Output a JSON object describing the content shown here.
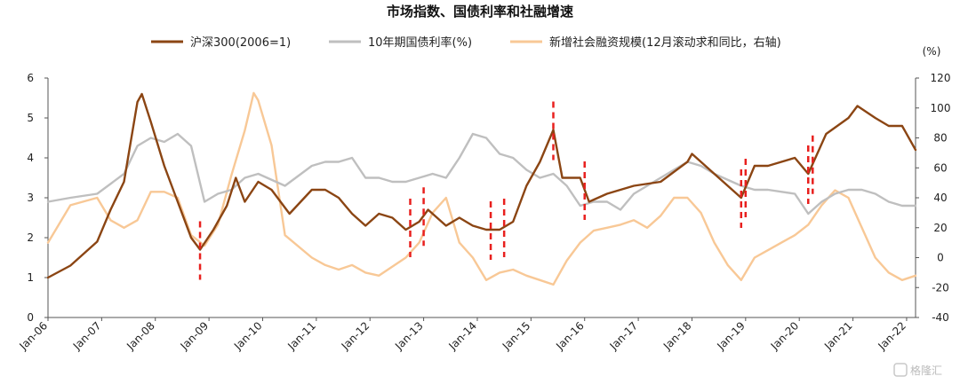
{
  "chart_data": {
    "type": "line",
    "title": "市场指数、国债利率和社融增速",
    "right_unit": "(%)",
    "left_axis": {
      "min": 0,
      "max": 6,
      "ticks": [
        "0",
        "1",
        "2",
        "3",
        "4",
        "5",
        "6"
      ]
    },
    "right_axis": {
      "min": -40,
      "max": 120,
      "ticks": [
        "-40",
        "-20",
        "0",
        "20",
        "40",
        "60",
        "80",
        "100",
        "120"
      ]
    },
    "x_axis": {
      "min": "2006-01",
      "max": "2022-03",
      "ticks": [
        "Jan-06",
        "Jan-07",
        "Jan-08",
        "Jan-09",
        "Jan-10",
        "Jan-11",
        "Jan-12",
        "Jan-13",
        "Jan-14",
        "Jan-15",
        "Jan-16",
        "Jan-17",
        "Jan-18",
        "Jan-19",
        "Jan-20",
        "Jan-21",
        "Jan-22"
      ]
    },
    "grid": false,
    "legend_position": "top",
    "series": [
      {
        "name": "沪深300(2006=1)",
        "axis": "left",
        "color": "#8B4513",
        "x": [
          "2006-01",
          "2006-06",
          "2006-12",
          "2007-03",
          "2007-06",
          "2007-09",
          "2007-10",
          "2007-12",
          "2008-03",
          "2008-06",
          "2008-09",
          "2008-11",
          "2009-02",
          "2009-05",
          "2009-07",
          "2009-09",
          "2009-12",
          "2010-03",
          "2010-07",
          "2010-12",
          "2011-03",
          "2011-06",
          "2011-09",
          "2011-12",
          "2012-03",
          "2012-06",
          "2012-09",
          "2012-12",
          "2013-02",
          "2013-06",
          "2013-09",
          "2013-12",
          "2014-03",
          "2014-06",
          "2014-09",
          "2014-12",
          "2015-03",
          "2015-06",
          "2015-08",
          "2015-12",
          "2016-02",
          "2016-06",
          "2016-12",
          "2017-06",
          "2017-12",
          "2018-01",
          "2018-06",
          "2018-12",
          "2019-03",
          "2019-06",
          "2019-12",
          "2020-03",
          "2020-07",
          "2020-12",
          "2021-02",
          "2021-06",
          "2021-09",
          "2021-12",
          "2022-03"
        ],
        "y": [
          1.0,
          1.3,
          1.9,
          2.7,
          3.4,
          5.4,
          5.6,
          4.9,
          3.8,
          2.9,
          2.0,
          1.7,
          2.2,
          2.8,
          3.5,
          2.9,
          3.4,
          3.2,
          2.6,
          3.2,
          3.2,
          3.0,
          2.6,
          2.3,
          2.6,
          2.5,
          2.2,
          2.4,
          2.7,
          2.3,
          2.5,
          2.3,
          2.2,
          2.2,
          2.4,
          3.3,
          3.9,
          4.7,
          3.5,
          3.5,
          2.9,
          3.1,
          3.3,
          3.4,
          3.9,
          4.1,
          3.6,
          3.0,
          3.8,
          3.8,
          4.0,
          3.6,
          4.6,
          5.0,
          5.3,
          5.0,
          4.8,
          4.8,
          4.2
        ]
      },
      {
        "name": "10年期国债利率(%)",
        "axis": "left",
        "color": "#BFBFBF",
        "x": [
          "2006-01",
          "2006-06",
          "2006-12",
          "2007-06",
          "2007-09",
          "2007-12",
          "2008-03",
          "2008-06",
          "2008-09",
          "2008-12",
          "2009-03",
          "2009-06",
          "2009-09",
          "2009-12",
          "2010-06",
          "2010-12",
          "2011-03",
          "2011-06",
          "2011-09",
          "2011-12",
          "2012-03",
          "2012-06",
          "2012-09",
          "2012-12",
          "2013-03",
          "2013-06",
          "2013-09",
          "2013-12",
          "2014-03",
          "2014-06",
          "2014-09",
          "2014-12",
          "2015-03",
          "2015-06",
          "2015-09",
          "2015-12",
          "2016-03",
          "2016-06",
          "2016-09",
          "2016-12",
          "2017-03",
          "2017-06",
          "2017-12",
          "2018-03",
          "2018-06",
          "2018-12",
          "2019-03",
          "2019-06",
          "2019-12",
          "2020-03",
          "2020-06",
          "2020-09",
          "2020-12",
          "2021-03",
          "2021-06",
          "2021-09",
          "2021-12",
          "2022-03"
        ],
        "y": [
          2.9,
          3.0,
          3.1,
          3.6,
          4.3,
          4.5,
          4.4,
          4.6,
          4.3,
          2.9,
          3.1,
          3.2,
          3.5,
          3.6,
          3.3,
          3.8,
          3.9,
          3.9,
          4.0,
          3.5,
          3.5,
          3.4,
          3.4,
          3.5,
          3.6,
          3.5,
          4.0,
          4.6,
          4.5,
          4.1,
          4.0,
          3.7,
          3.5,
          3.6,
          3.3,
          2.8,
          2.9,
          2.9,
          2.7,
          3.1,
          3.3,
          3.5,
          3.9,
          3.8,
          3.6,
          3.3,
          3.2,
          3.2,
          3.1,
          2.6,
          2.9,
          3.1,
          3.2,
          3.2,
          3.1,
          2.9,
          2.8,
          2.8
        ]
      },
      {
        "name": "新增社会融资规模(12月滚动求和同比，右轴)",
        "axis": "right",
        "color": "#F8C896",
        "x": [
          "2006-01",
          "2006-06",
          "2006-12",
          "2007-03",
          "2007-06",
          "2007-09",
          "2007-12",
          "2008-03",
          "2008-06",
          "2008-09",
          "2008-12",
          "2009-03",
          "2009-06",
          "2009-09",
          "2009-11",
          "2009-12",
          "2010-03",
          "2010-06",
          "2010-12",
          "2011-03",
          "2011-06",
          "2011-09",
          "2011-12",
          "2012-03",
          "2012-06",
          "2012-09",
          "2012-12",
          "2013-03",
          "2013-06",
          "2013-09",
          "2013-12",
          "2014-03",
          "2014-06",
          "2014-09",
          "2014-12",
          "2015-03",
          "2015-06",
          "2015-09",
          "2015-12",
          "2016-03",
          "2016-06",
          "2016-09",
          "2016-12",
          "2017-03",
          "2017-06",
          "2017-09",
          "2017-12",
          "2018-03",
          "2018-06",
          "2018-09",
          "2018-12",
          "2019-03",
          "2019-06",
          "2019-09",
          "2019-12",
          "2020-03",
          "2020-06",
          "2020-09",
          "2020-12",
          "2021-03",
          "2021-06",
          "2021-09",
          "2021-12",
          "2022-03"
        ],
        "y": [
          10,
          35,
          40,
          25,
          20,
          25,
          44,
          44,
          40,
          15,
          8,
          22,
          55,
          85,
          110,
          105,
          75,
          15,
          0,
          -5,
          -8,
          -5,
          -10,
          -12,
          -6,
          0,
          10,
          30,
          40,
          10,
          0,
          -15,
          -10,
          -8,
          -12,
          -15,
          -18,
          -2,
          10,
          18,
          20,
          22,
          25,
          20,
          28,
          40,
          40,
          30,
          10,
          -5,
          -15,
          0,
          5,
          10,
          15,
          22,
          35,
          45,
          40,
          20,
          0,
          -10,
          -15,
          -12
        ]
      }
    ],
    "markers": [
      "2008-11",
      "2012-10",
      "2013-01",
      "2014-04",
      "2014-07",
      "2015-06",
      "2016-01",
      "2018-12",
      "2019-01",
      "2020-03",
      "2020-04"
    ]
  },
  "watermark": "格隆汇",
  "colors": {
    "marker": "#E8201E"
  }
}
